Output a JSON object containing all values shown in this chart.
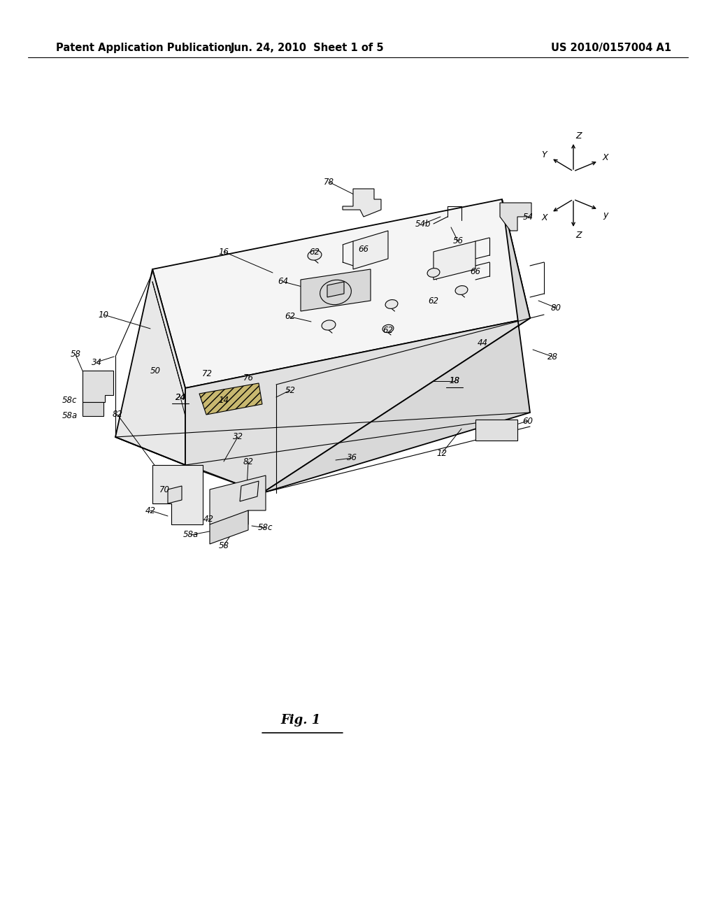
{
  "background_color": "#ffffff",
  "header_left": "Patent Application Publication",
  "header_center": "Jun. 24, 2010  Sheet 1 of 5",
  "header_right": "US 2010/0157004 A1",
  "figure_label": "Fig. 1",
  "header_fontsize": 10.5,
  "figure_label_fontsize": 13,
  "lw_main": 1.3,
  "lw_thin": 0.8,
  "gray_top": "#f2f2f2",
  "gray_left": "#e0e0e0",
  "gray_right": "#d0d0d0",
  "white": "#ffffff",
  "black": "#000000"
}
